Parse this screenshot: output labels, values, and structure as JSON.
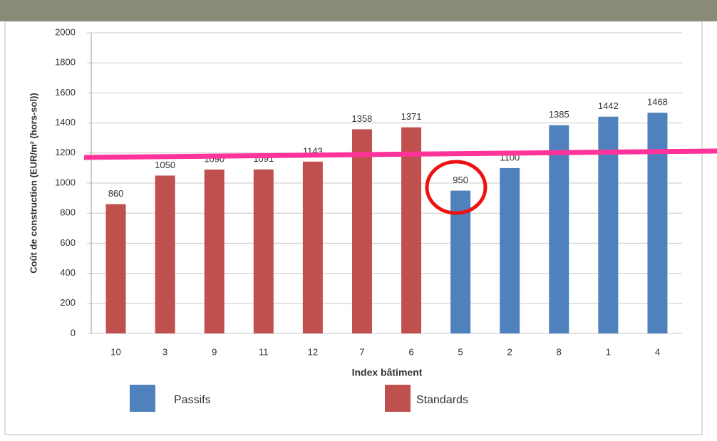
{
  "chart_data": {
    "type": "bar",
    "y_label": "Coût de construction (EUR/m² (hors-sol))",
    "x_label": "Index bâtiment",
    "categories": [
      "10",
      "3",
      "9",
      "11",
      "12",
      "7",
      "6",
      "5",
      "2",
      "8",
      "1",
      "4"
    ],
    "series": [
      {
        "name": "Passifs",
        "color": "#4f81bd",
        "values": [
          null,
          null,
          null,
          null,
          null,
          null,
          null,
          950,
          1100,
          1385,
          1442,
          1468
        ]
      },
      {
        "name": "Standards",
        "color": "#c0504d",
        "values": [
          860,
          1050,
          1090,
          1091,
          1143,
          1358,
          1371,
          null,
          null,
          null,
          null,
          null
        ]
      }
    ],
    "ylim": [
      0,
      2000
    ],
    "yticks": [
      0,
      200,
      400,
      600,
      800,
      1000,
      1200,
      1400,
      1600,
      1800,
      2000
    ],
    "grid": true
  }
}
